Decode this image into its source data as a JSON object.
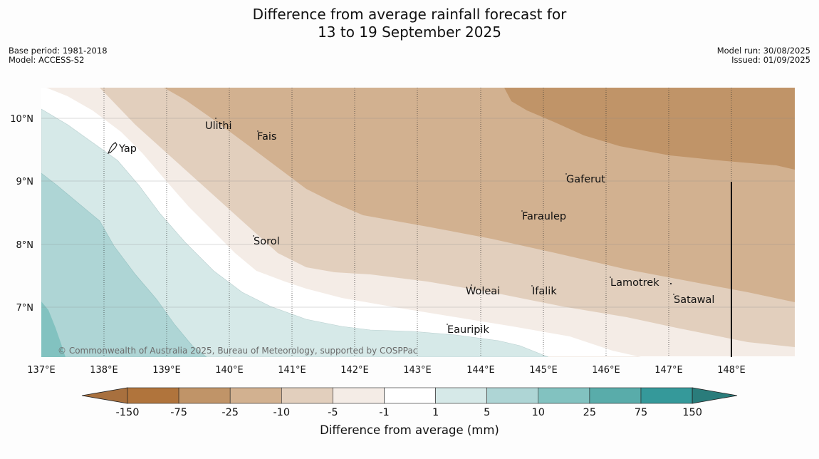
{
  "title_line1": "Difference from average rainfall forecast for",
  "title_line2": "13 to 19 September 2025",
  "base_period": "Base period: 1981-2018",
  "model": "Model: ACCESS-S2",
  "model_run": "Model run: 30/08/2025",
  "issued": "Issued: 01/09/2025",
  "copyright": "© Commonwealth of Australia 2025, Bureau of Meteorology, supported by COSPPac",
  "lon_ticks": [
    "137°E",
    "138°E",
    "139°E",
    "140°E",
    "141°E",
    "142°E",
    "143°E",
    "144°E",
    "145°E",
    "146°E",
    "147°E",
    "148°E"
  ],
  "lat_ticks": [
    "10°N",
    "9°N",
    "8°N",
    "7°N"
  ],
  "places": [
    {
      "name": "Yap"
    },
    {
      "name": "Ulithi"
    },
    {
      "name": "Fais"
    },
    {
      "name": "Gaferut"
    },
    {
      "name": "Faraulep"
    },
    {
      "name": "Sorol"
    },
    {
      "name": "Lamotrek"
    },
    {
      "name": "Woleai"
    },
    {
      "name": "Ifalik"
    },
    {
      "name": "Satawal"
    },
    {
      "name": "Eauripik"
    }
  ],
  "colorbar": {
    "title": "Difference from average (mm)",
    "labels": [
      "-150",
      "-75",
      "-25",
      "-10",
      "-5",
      "-1",
      "1",
      "5",
      "10",
      "25",
      "75",
      "150"
    ],
    "colors": [
      "#a8703e",
      "#b0743c",
      "#c09468",
      "#d2b190",
      "#e2cfbd",
      "#f4ece6",
      "#ffffff",
      "#d6e9e8",
      "#aed5d5",
      "#82c2c0",
      "#59acaa",
      "#35999a",
      "#2a7c7b"
    ]
  }
}
